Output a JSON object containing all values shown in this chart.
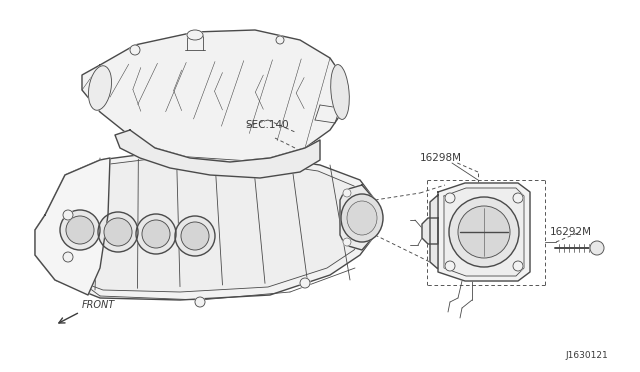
{
  "bg_color": "#ffffff",
  "line_color": "#4a4a4a",
  "text_color": "#3a3a3a",
  "label_16298M": "16298M",
  "label_16292M": "16292M",
  "label_sec140": "SEC.140",
  "label_front": "FRONT",
  "label_ref": "J1630121",
  "lw_main": 1.0,
  "lw_detail": 0.6,
  "lw_thin": 0.4
}
